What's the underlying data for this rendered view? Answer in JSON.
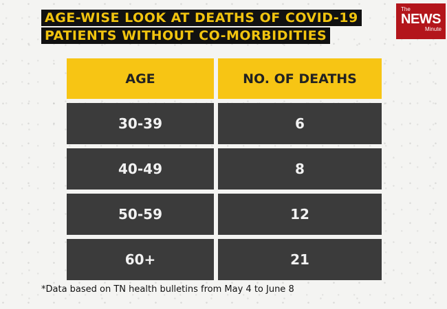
{
  "title_lines": [
    "AGE-WISE LOOK AT DEATHS OF COVID-19",
    "PATIENTS WITHOUT CO-MORBIDITIES"
  ],
  "logo": {
    "the": "The",
    "news": "NEWS",
    "minute": "Minute"
  },
  "chart_data": {
    "type": "table",
    "columns": [
      "AGE",
      "NO. OF DEATHS"
    ],
    "rows": [
      {
        "age": "30-39",
        "deaths": 6
      },
      {
        "age": "40-49",
        "deaths": 8
      },
      {
        "age": "50-59",
        "deaths": 12
      },
      {
        "age": "60+",
        "deaths": 21
      }
    ]
  },
  "colors": {
    "header_bg": "#f7c514",
    "cell_bg": "#3b3b3b",
    "title_text": "#f1c40f",
    "logo_bg": "#b3151b"
  },
  "footnote": "*Data based on TN health bulletins from May 4 to June 8"
}
